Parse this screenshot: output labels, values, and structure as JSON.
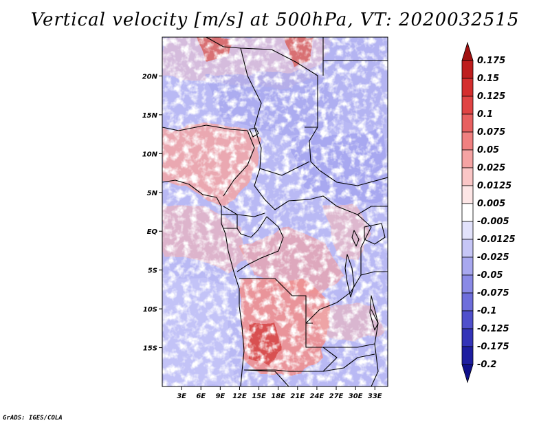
{
  "title": "Vertical velocity [m/s] at 500hPa, VT: 2020032515",
  "footer": "GrADS: IGES/COLA",
  "map": {
    "lon_range": [
      0,
      35
    ],
    "lat_range": [
      -20,
      25
    ],
    "lat_ticks": [
      {
        "value": 20,
        "label": "20N"
      },
      {
        "value": 15,
        "label": "15N"
      },
      {
        "value": 10,
        "label": "10N"
      },
      {
        "value": 5,
        "label": "5N"
      },
      {
        "value": 0,
        "label": "EQ"
      },
      {
        "value": -5,
        "label": "5S"
      },
      {
        "value": -10,
        "label": "10S"
      },
      {
        "value": -15,
        "label": "15S"
      }
    ],
    "lon_ticks": [
      {
        "value": 3,
        "label": "3E"
      },
      {
        "value": 6,
        "label": "6E"
      },
      {
        "value": 9,
        "label": "9E"
      },
      {
        "value": 12,
        "label": "12E"
      },
      {
        "value": 15,
        "label": "15E"
      },
      {
        "value": 18,
        "label": "18E"
      },
      {
        "value": 21,
        "label": "21E"
      },
      {
        "value": 24,
        "label": "24E"
      },
      {
        "value": 27,
        "label": "27E"
      },
      {
        "value": 30,
        "label": "30E"
      },
      {
        "value": 33,
        "label": "33E"
      }
    ]
  },
  "colorbar": {
    "labels": [
      "0.175",
      "0.15",
      "0.125",
      "0.1",
      "0.075",
      "0.05",
      "0.025",
      "0.0125",
      "0.005",
      "-0.005",
      "-0.0125",
      "-0.025",
      "-0.05",
      "-0.075",
      "-0.1",
      "-0.125",
      "-0.175",
      "-0.2"
    ],
    "colors": [
      "#a01010",
      "#be1e1e",
      "#d42e2e",
      "#e04444",
      "#e86060",
      "#f08080",
      "#f5a3a3",
      "#fac6c6",
      "#fde6e6",
      "#ffffff",
      "#e2e2fb",
      "#c6c6f6",
      "#a8a8ef",
      "#8a8ae6",
      "#6e6edb",
      "#5050cc",
      "#3434b8",
      "#1e1ea0",
      "#10108a"
    ]
  }
}
